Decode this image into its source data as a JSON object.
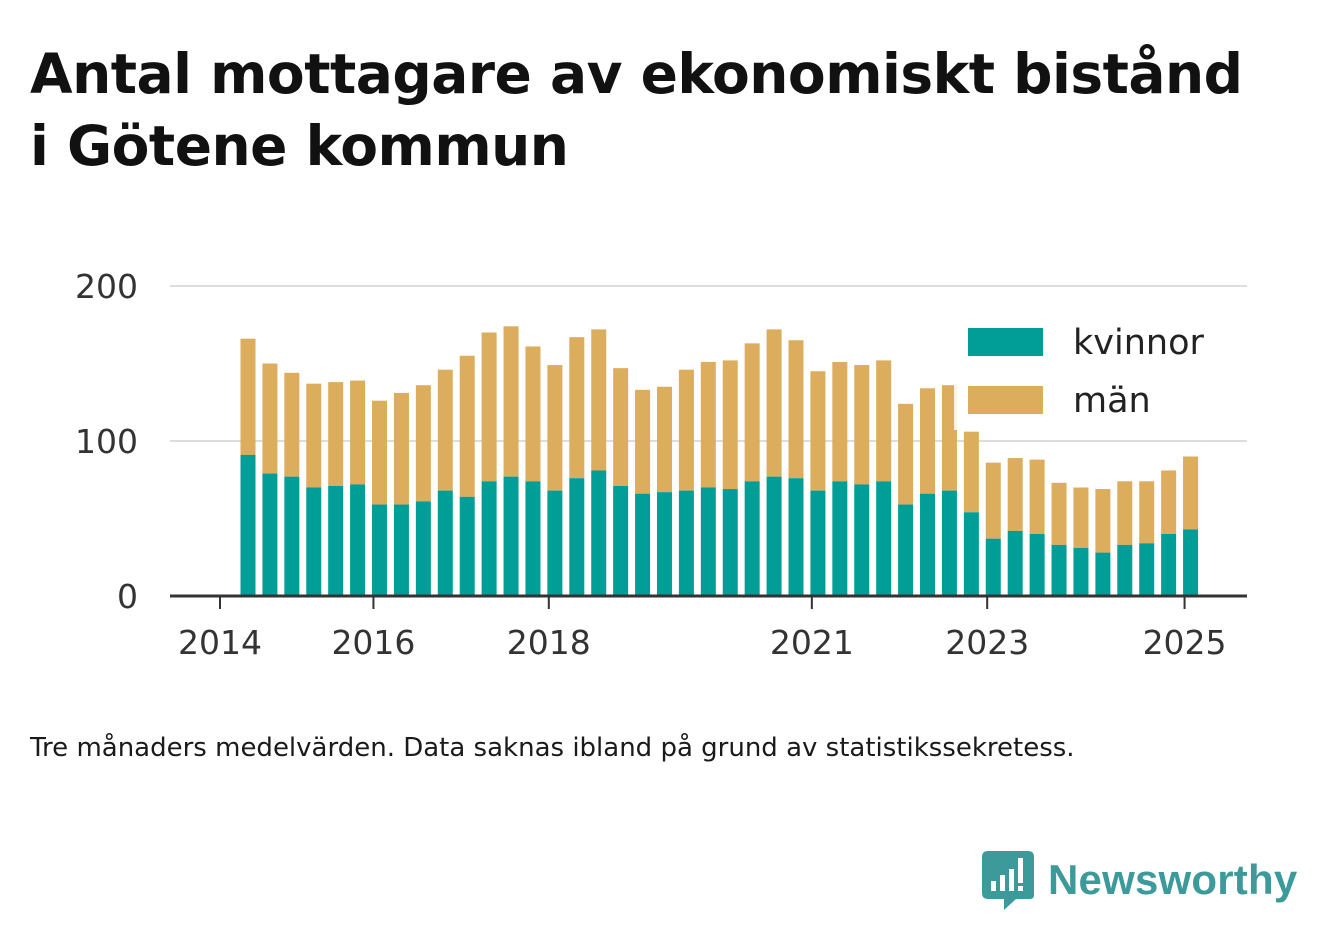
{
  "title_lines": [
    "Antal mottagare av ekonomiskt bistånd",
    "i Götene kommun"
  ],
  "note": "Tre månaders medelvärden. Data saknas ibland på grund av statistikssekretess.",
  "brand": {
    "name": "Newsworthy",
    "color": "#3d9a9a",
    "icon": "newsworthy-bar-chart-icon"
  },
  "colors": {
    "kvinnor": "#009e96",
    "man": "#dbad5c",
    "grid": "#dddddd",
    "axis": "#333333"
  },
  "chart_data": {
    "type": "bar",
    "stacked": true,
    "ylim": [
      0,
      200
    ],
    "y_ticks": [
      0,
      100,
      200
    ],
    "x_ticks": [
      "2014",
      "2016",
      "2018",
      "2021",
      "2023",
      "2025"
    ],
    "grid": true,
    "legend_position": "top-right",
    "periods": [
      "2014-Q2",
      "2014-Q3",
      "2014-Q4",
      "2015-Q1",
      "2015-Q2",
      "2015-Q3",
      "2015-Q4",
      "2016-Q1",
      "2016-Q2",
      "2016-Q3",
      "2016-Q4",
      "2017-Q1",
      "2017-Q2",
      "2017-Q3",
      "2017-Q4",
      "2018-Q1",
      "2018-Q2",
      "2018-Q3",
      "2018-Q4",
      "2019-Q1",
      "2019-Q2",
      "2019-Q3",
      "2019-Q4",
      "2020-Q1",
      "2020-Q2",
      "2020-Q3",
      "2020-Q4",
      "2021-Q1",
      "2021-Q2",
      "2021-Q3",
      "2021-Q4",
      "2022-Q1",
      "2022-Q2",
      "2022-Q3",
      "2022-Q4",
      "2023-Q1",
      "2023-Q2",
      "2023-Q3",
      "2023-Q4",
      "2024-Q1",
      "2024-Q2",
      "2024-Q3",
      "2024-Q4",
      "2025-Q1"
    ],
    "series": [
      {
        "name": "kvinnor",
        "values": [
          91,
          79,
          77,
          70,
          71,
          72,
          59,
          59,
          61,
          68,
          64,
          74,
          77,
          74,
          68,
          76,
          81,
          71,
          66,
          67,
          68,
          70,
          69,
          74,
          77,
          76,
          68,
          74,
          72,
          74,
          59,
          66,
          68,
          54,
          37,
          42,
          40,
          33,
          31,
          28,
          33,
          34,
          40,
          43
        ]
      },
      {
        "name": "män",
        "values": [
          75,
          71,
          67,
          67,
          67,
          67,
          67,
          72,
          75,
          78,
          91,
          96,
          97,
          87,
          81,
          91,
          91,
          76,
          67,
          68,
          78,
          81,
          83,
          89,
          95,
          89,
          77,
          77,
          77,
          78,
          65,
          68,
          68,
          52,
          49,
          47,
          48,
          40,
          39,
          41,
          41,
          40,
          41,
          47
        ]
      }
    ]
  }
}
